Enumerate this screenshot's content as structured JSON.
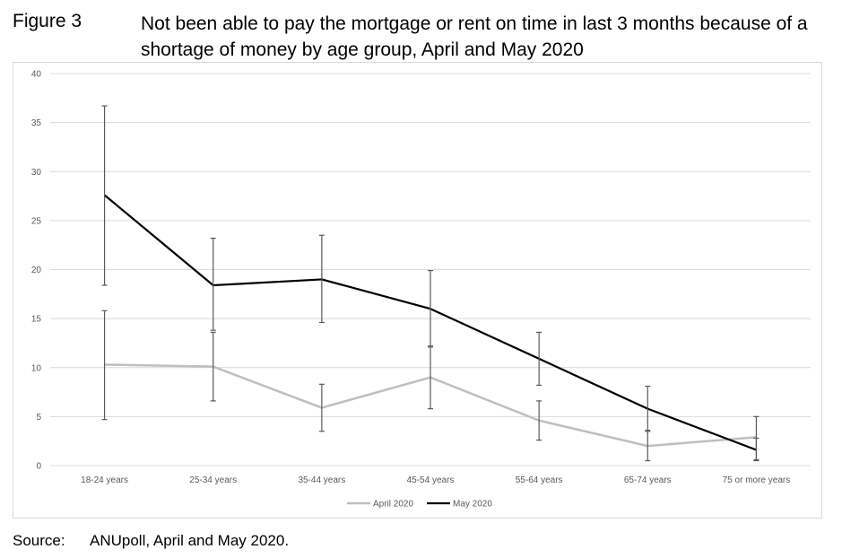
{
  "figure_label": "Figure 3",
  "title": "Not been able to pay the mortgage or rent on time in last 3 months because of a shortage of money by age group, April and May 2020",
  "source": {
    "label": "Source:",
    "text": "ANUpoll, April and May 2020."
  },
  "chart_data": {
    "type": "line",
    "title": "Not been able to pay the mortgage or rent on time in last 3 months because of a shortage of money by age group, April and May 2020",
    "categories": [
      "18-24 years",
      "25-34 years",
      "35-44 years",
      "45-54 years",
      "55-64 years",
      "65-74 years",
      "75 or more years"
    ],
    "ylim": [
      0,
      40
    ],
    "yticks": [
      0,
      5,
      10,
      15,
      20,
      25,
      30,
      35,
      40
    ],
    "grid": true,
    "legend_position": "bottom",
    "error_bars": true,
    "series": [
      {
        "name": "April 2020",
        "color": "#bfbfbf",
        "values": [
          10.3,
          10.1,
          5.9,
          9.0,
          4.6,
          2.0,
          2.9
        ],
        "lower": [
          4.7,
          6.6,
          3.5,
          5.8,
          2.6,
          0.5,
          0.6
        ],
        "upper": [
          15.8,
          13.6,
          8.3,
          12.1,
          6.6,
          3.5,
          5.0
        ]
      },
      {
        "name": "May 2020",
        "color": "#000000",
        "values": [
          27.6,
          18.4,
          19.0,
          16.0,
          10.9,
          5.8,
          1.6
        ],
        "lower": [
          18.4,
          13.8,
          14.6,
          12.2,
          8.2,
          3.6,
          0.5
        ],
        "upper": [
          36.7,
          23.2,
          23.5,
          19.9,
          13.6,
          8.1,
          2.8
        ]
      }
    ]
  }
}
